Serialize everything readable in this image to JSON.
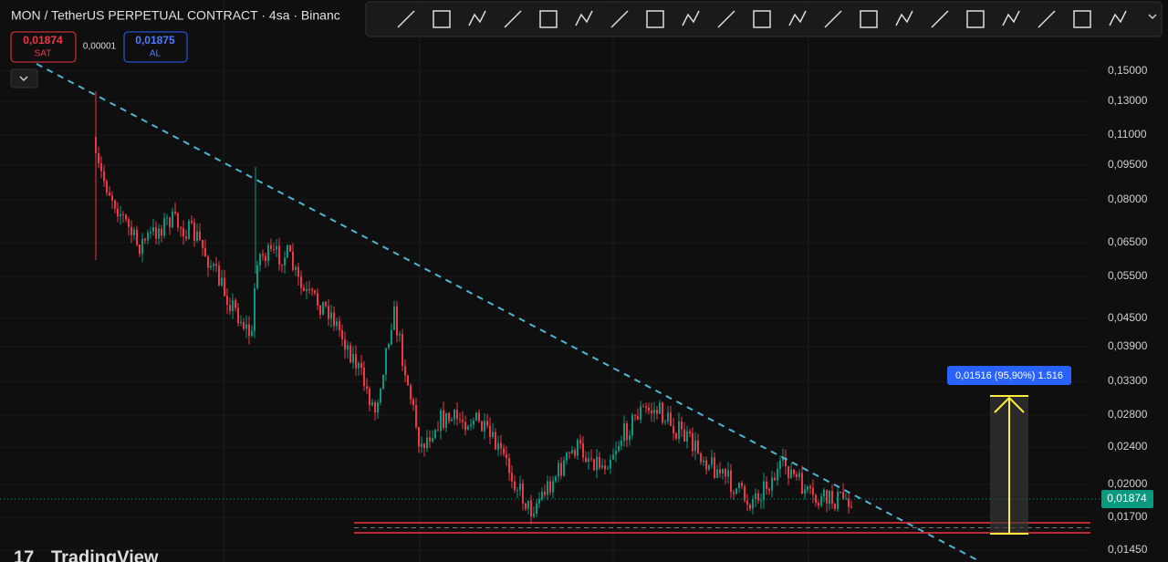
{
  "header": {
    "title": "MON / TetherUS PERPETUAL CONTRACT · 4sa · Binanc"
  },
  "order": {
    "sell_price": "0,01874",
    "sell_label": "SAT",
    "spread": "0,00001",
    "buy_price": "0,01875",
    "buy_label": "AL"
  },
  "price_axis": {
    "labels": [
      "0,15000",
      "0,13000",
      "0,11000",
      "0,09500",
      "0,08000",
      "0,06500",
      "0,05500",
      "0,04500",
      "0,03900",
      "0,03300",
      "0,02800",
      "0,02400",
      "0,02000",
      "0,01700",
      "0,01450"
    ],
    "current_price": "0,01874"
  },
  "measure": {
    "label": "0,01516 (95,90%) 1.516"
  },
  "logo": {
    "text": "TradingView"
  }
}
